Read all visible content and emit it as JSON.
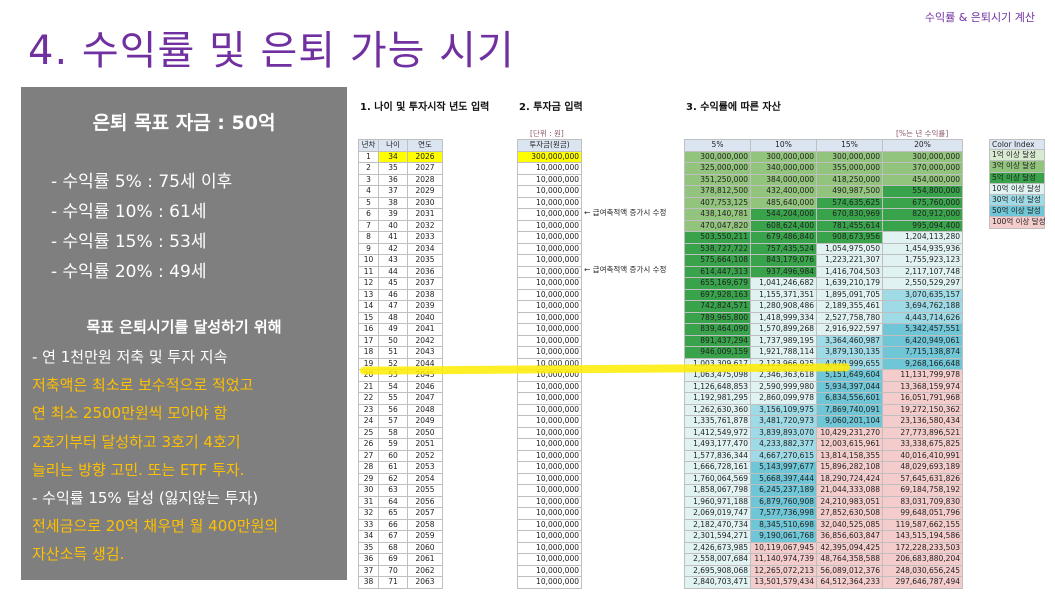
{
  "header": {
    "top_right": "수익률 & 은퇴시기 계산",
    "title": "4. 수익률 및 은퇴 가능 시기"
  },
  "panel": {
    "goal": "은퇴 목표 자금 : 50억",
    "rates": [
      "- 수익률  5% : 75세 이후",
      "- 수익률 10% : 61세",
      "- 수익률 15% : 53세",
      "- 수익률 20% : 49세"
    ],
    "sub_title": "목표 은퇴시기를 달성하기 위해",
    "lines": [
      {
        "text": " - 연 1천만원 저축 및 투자 지속",
        "color": "#ffffff"
      },
      {
        "text": "저축액은 최소로 보수적으로 적었고",
        "color": "#ffc000"
      },
      {
        "text": "연 최소 2500만원씩 모아야 함",
        "color": "#ffc000"
      },
      {
        "text": "2호기부터 달성하고 3호기 4호기",
        "color": "#ffc000"
      },
      {
        "text": "늘리는 방향 고민. 또는 ETF 투자.",
        "color": "#ffc000"
      },
      {
        "text": " - 수익률 15% 달성 (잃지않는 투자)",
        "color": "#ffffff"
      },
      {
        "text": "전세금으로 20억 채우면 월 400만원의",
        "color": "#ffc000"
      },
      {
        "text": "자산소득 생김.",
        "color": "#ffc000"
      }
    ]
  },
  "sheet": {
    "sec1": "1. 나이 및 투자시작 년도 입력",
    "sec2": "2. 투자금 입력",
    "sec3": "3. 수익률에 따른 자산",
    "unit_invest": "[단위 : 원]",
    "unit_rate": "[%는 년 수익률]",
    "headers_left": [
      "년차",
      "나이",
      "연도"
    ],
    "header_invest": "투자금(원금)",
    "headers_rates": [
      "5%",
      "10%",
      "15%",
      "20%"
    ],
    "note_text": "← 급여축적액 증가시 수정",
    "legend_title": "Color Index",
    "legend": [
      {
        "label": "1억 이상 달성",
        "color": "#d9ead3"
      },
      {
        "label": "3억 이상 달성",
        "color": "#93c47d"
      },
      {
        "label": "5억 이상 달성",
        "color": "#38a34a"
      },
      {
        "label": "10억 이상 달성",
        "color": "#e0f2f1"
      },
      {
        "label": "30억 이상 달성",
        "color": "#9fdbe6"
      },
      {
        "label": "50억 이상 달성",
        "color": "#6fc6d6"
      },
      {
        "label": "100억 이상 달성",
        "color": "#f4cccc"
      }
    ],
    "rows": [
      [
        "1",
        "34",
        "2026",
        "300,000,000",
        "300,000,000",
        "300,000,000",
        "300,000,000",
        "300,000,000"
      ],
      [
        "2",
        "35",
        "2027",
        "10,000,000",
        "325,000,000",
        "340,000,000",
        "355,000,000",
        "370,000,000"
      ],
      [
        "3",
        "36",
        "2028",
        "10,000,000",
        "351,250,000",
        "384,000,000",
        "418,250,000",
        "454,000,000"
      ],
      [
        "4",
        "37",
        "2029",
        "10,000,000",
        "378,812,500",
        "432,400,000",
        "490,987,500",
        "554,800,000"
      ],
      [
        "5",
        "38",
        "2030",
        "10,000,000",
        "407,753,125",
        "485,640,000",
        "574,635,625",
        "675,760,000"
      ],
      [
        "6",
        "39",
        "2031",
        "10,000,000",
        "438,140,781",
        "544,204,000",
        "670,830,969",
        "820,912,000"
      ],
      [
        "7",
        "40",
        "2032",
        "10,000,000",
        "470,047,820",
        "608,624,400",
        "781,455,614",
        "995,094,400"
      ],
      [
        "8",
        "41",
        "2033",
        "10,000,000",
        "503,550,211",
        "679,486,840",
        "908,673,956",
        "1,204,113,280"
      ],
      [
        "9",
        "42",
        "2034",
        "10,000,000",
        "538,727,722",
        "757,435,524",
        "1,054,975,050",
        "1,454,935,936"
      ],
      [
        "10",
        "43",
        "2035",
        "10,000,000",
        "575,664,108",
        "843,179,076",
        "1,223,221,307",
        "1,755,923,123"
      ],
      [
        "11",
        "44",
        "2036",
        "10,000,000",
        "614,447,313",
        "937,496,984",
        "1,416,704,503",
        "2,117,107,748"
      ],
      [
        "12",
        "45",
        "2037",
        "10,000,000",
        "655,169,679",
        "1,041,246,682",
        "1,639,210,179",
        "2,550,529,297"
      ],
      [
        "13",
        "46",
        "2038",
        "10,000,000",
        "697,928,163",
        "1,155,371,351",
        "1,895,091,705",
        "3,070,635,157"
      ],
      [
        "14",
        "47",
        "2039",
        "10,000,000",
        "742,824,571",
        "1,280,908,486",
        "2,189,355,461",
        "3,694,762,188"
      ],
      [
        "15",
        "48",
        "2040",
        "10,000,000",
        "789,965,800",
        "1,418,999,334",
        "2,527,758,780",
        "4,443,714,626"
      ],
      [
        "16",
        "49",
        "2041",
        "10,000,000",
        "839,464,090",
        "1,570,899,268",
        "2,916,922,597",
        "5,342,457,551"
      ],
      [
        "17",
        "50",
        "2042",
        "10,000,000",
        "891,437,294",
        "1,737,989,195",
        "3,364,460,987",
        "6,420,949,061"
      ],
      [
        "18",
        "51",
        "2043",
        "10,000,000",
        "946,009,159",
        "1,921,788,114",
        "3,879,130,135",
        "7,715,138,874"
      ],
      [
        "19",
        "52",
        "2044",
        "10,000,000",
        "1,003,309,617",
        "2,123,966,925",
        "4,470,999,655",
        "9,268,166,648"
      ],
      [
        "20",
        "53",
        "2045",
        "10,000,000",
        "1,063,475,098",
        "2,346,363,618",
        "5,151,649,604",
        "11,131,799,978"
      ],
      [
        "21",
        "54",
        "2046",
        "10,000,000",
        "1,126,648,853",
        "2,590,999,980",
        "5,934,397,044",
        "13,368,159,974"
      ],
      [
        "22",
        "55",
        "2047",
        "10,000,000",
        "1,192,981,295",
        "2,860,099,978",
        "6,834,556,601",
        "16,051,791,968"
      ],
      [
        "23",
        "56",
        "2048",
        "10,000,000",
        "1,262,630,360",
        "3,156,109,975",
        "7,869,740,091",
        "19,272,150,362"
      ],
      [
        "24",
        "57",
        "2049",
        "10,000,000",
        "1,335,761,878",
        "3,481,720,973",
        "9,060,201,104",
        "23,136,580,434"
      ],
      [
        "25",
        "58",
        "2050",
        "10,000,000",
        "1,412,549,972",
        "3,839,893,070",
        "10,429,231,270",
        "27,773,896,521"
      ],
      [
        "26",
        "59",
        "2051",
        "10,000,000",
        "1,493,177,470",
        "4,233,882,377",
        "12,003,615,961",
        "33,338,675,825"
      ],
      [
        "27",
        "60",
        "2052",
        "10,000,000",
        "1,577,836,344",
        "4,667,270,615",
        "13,814,158,355",
        "40,016,410,991"
      ],
      [
        "28",
        "61",
        "2053",
        "10,000,000",
        "1,666,728,161",
        "5,143,997,677",
        "15,896,282,108",
        "48,029,693,189"
      ],
      [
        "29",
        "62",
        "2054",
        "10,000,000",
        "1,760,064,569",
        "5,668,397,444",
        "18,290,724,424",
        "57,645,631,826"
      ],
      [
        "30",
        "63",
        "2055",
        "10,000,000",
        "1,858,067,798",
        "6,245,237,189",
        "21,044,333,088",
        "69,184,758,192"
      ],
      [
        "31",
        "64",
        "2056",
        "10,000,000",
        "1,960,971,188",
        "6,879,760,908",
        "24,210,983,051",
        "83,031,709,830"
      ],
      [
        "32",
        "65",
        "2057",
        "10,000,000",
        "2,069,019,747",
        "7,577,736,998",
        "27,852,630,508",
        "99,648,051,796"
      ],
      [
        "33",
        "66",
        "2058",
        "10,000,000",
        "2,182,470,734",
        "8,345,510,698",
        "32,040,525,085",
        "119,587,662,155"
      ],
      [
        "34",
        "67",
        "2059",
        "10,000,000",
        "2,301,594,271",
        "9,190,061,768",
        "36,856,603,847",
        "143,515,194,586"
      ],
      [
        "35",
        "68",
        "2060",
        "10,000,000",
        "2,426,673,985",
        "10,119,067,945",
        "42,395,094,425",
        "172,228,233,503"
      ],
      [
        "36",
        "69",
        "2061",
        "10,000,000",
        "2,558,007,684",
        "11,140,974,739",
        "48,764,358,588",
        "206,683,880,204"
      ],
      [
        "37",
        "70",
        "2062",
        "10,000,000",
        "2,695,908,068",
        "12,265,072,213",
        "56,089,012,376",
        "248,030,656,245"
      ],
      [
        "38",
        "71",
        "2063",
        "10,000,000",
        "2,840,703,471",
        "13,501,579,434",
        "64,512,364,233",
        "297,646,787,494"
      ]
    ]
  }
}
